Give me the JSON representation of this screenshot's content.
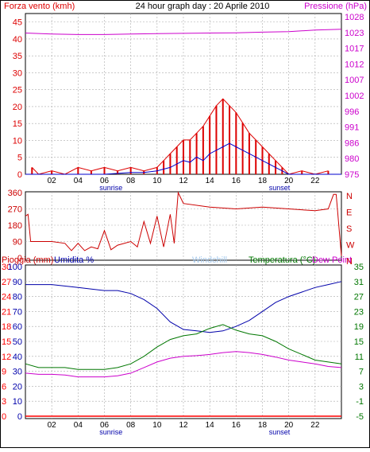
{
  "title": "24 hour graph day : 20 Aprile 2010",
  "colors": {
    "wind": "#dd0000",
    "gust": "#0000cc",
    "pressure": "#cc00cc",
    "direction": "#cc0000",
    "humidity": "#0000aa",
    "temperature": "#007700",
    "dewpoint": "#cc00cc",
    "rain": "#ff0000",
    "windchill": "#aaccee",
    "frame": "#000000",
    "grid": "#aaaaaa"
  },
  "time_axis": {
    "ticks": [
      "02",
      "04",
      "06",
      "08",
      "10",
      "12",
      "14",
      "16",
      "18",
      "20",
      "22"
    ],
    "sunrise_label": "sunrise",
    "sunset_label": "sunset",
    "range_hours": [
      0,
      24
    ]
  },
  "panel1": {
    "left_label": "Forza vento (kmh)",
    "right_label": "Pressione (hPa)",
    "left_ticks": [
      "0",
      "5",
      "10",
      "15",
      "20",
      "25",
      "30",
      "35",
      "40",
      "45"
    ],
    "right_ticks": [
      "975",
      "980",
      "986",
      "991",
      "996",
      "1002",
      "1007",
      "1012",
      "1017",
      "1023",
      "1028"
    ]
  },
  "panel2": {
    "left_ticks": [
      "0",
      "90",
      "180",
      "270",
      "360"
    ],
    "right_ticks": [
      "N",
      "E",
      "S",
      "W",
      "N"
    ]
  },
  "panel3": {
    "rain_label": "Pioggia (mm)",
    "humidity_label": "Umidita %",
    "windchill_label": "Windchill",
    "temp_label": "Temperatura (°C)",
    "dew_label": "Dew Point",
    "rain_ticks": [
      "0",
      "3",
      "6",
      "9",
      "12",
      "15",
      "18",
      "21",
      "24",
      "27",
      "30"
    ],
    "humidity_ticks": [
      "0",
      "10",
      "20",
      "30",
      "40",
      "50",
      "60",
      "70",
      "80",
      "90",
      "100"
    ],
    "temp_ticks": [
      "-5",
      "-1",
      "3",
      "7",
      "11",
      "15",
      "19",
      "23",
      "27",
      "31",
      "35"
    ]
  },
  "chart_data": [
    {
      "type": "line",
      "title": "24 hour graph day : 20 Aprile 2010",
      "x_unit": "hour",
      "xlim": [
        0,
        24
      ],
      "ylim_left": [
        0,
        45
      ],
      "ylim_right": [
        975,
        1028
      ],
      "series": [
        {
          "name": "Forza vento (kmh)",
          "axis": "left",
          "x": [
            0.5,
            1,
            2,
            3,
            4,
            5,
            6,
            7,
            8,
            9,
            10,
            10.5,
            11,
            11.5,
            12,
            12.5,
            13,
            13.5,
            14,
            14.5,
            15,
            15.5,
            16,
            16.5,
            17,
            17.5,
            18,
            18.5,
            19,
            19.5,
            20,
            21,
            22,
            23
          ],
          "y": [
            2,
            0,
            1,
            0,
            2,
            1,
            2,
            1,
            2,
            1,
            2,
            4,
            6,
            8,
            10,
            10,
            12,
            14,
            17,
            20,
            22,
            20,
            18,
            15,
            12,
            10,
            8,
            6,
            4,
            2,
            0,
            1,
            0,
            1
          ]
        },
        {
          "axis": "left",
          "x": [
            0,
            4,
            6,
            8,
            9,
            10,
            10.5,
            11,
            11.5,
            12,
            12.5,
            13,
            13.5,
            14,
            14.5,
            15,
            15.5,
            16,
            16.5,
            17,
            17.5,
            18,
            18.5,
            19,
            19.5,
            20,
            24
          ],
          "y": [
            0,
            0,
            0,
            0.5,
            0.5,
            1,
            1.5,
            2,
            3,
            4,
            3.5,
            5,
            4,
            6,
            7,
            8,
            9,
            8,
            7,
            6,
            5,
            4,
            3,
            2,
            1,
            0,
            0
          ]
        },
        {
          "name": "Pressione (hPa)",
          "axis": "right",
          "x": [
            0,
            2,
            4,
            6,
            8,
            10,
            12,
            14,
            16,
            18,
            20,
            22,
            24
          ],
          "y": [
            1022.5,
            1022.2,
            1022.0,
            1022.0,
            1022.2,
            1022.3,
            1022.4,
            1022.5,
            1022.6,
            1022.8,
            1023.0,
            1023.5,
            1023.8
          ]
        }
      ]
    },
    {
      "type": "line",
      "xlim": [
        0,
        24
      ],
      "ylim": [
        0,
        360
      ],
      "series": [
        {
          "x": [
            0,
            0.2,
            0.4,
            2,
            3,
            3.5,
            4,
            4.5,
            5,
            5.5,
            6,
            6.5,
            7,
            8,
            8.5,
            9,
            9.5,
            10,
            10.5,
            11,
            11.3,
            11.6,
            12,
            14,
            16,
            18,
            20,
            22,
            23,
            23.4,
            23.6,
            24
          ],
          "y": [
            230,
            240,
            90,
            90,
            80,
            40,
            80,
            40,
            60,
            50,
            150,
            45,
            70,
            90,
            60,
            200,
            80,
            230,
            60,
            240,
            80,
            360,
            300,
            280,
            270,
            280,
            270,
            260,
            270,
            350,
            350,
            10
          ]
        }
      ]
    },
    {
      "type": "line",
      "xlim": [
        0,
        24
      ],
      "ylim_rain": [
        0,
        30
      ],
      "ylim_humidity": [
        0,
        100
      ],
      "ylim_temp": [
        -5,
        35
      ],
      "series": [
        {
          "name": "Umidita %",
          "axis": "humidity",
          "x": [
            0,
            2,
            4,
            6,
            7,
            8,
            9,
            10,
            11,
            12,
            13,
            14,
            15,
            16,
            17,
            18,
            19,
            20,
            21,
            22,
            23,
            24
          ],
          "y": [
            88,
            88,
            86,
            84,
            84,
            82,
            78,
            72,
            63,
            58,
            57,
            56,
            57,
            60,
            64,
            70,
            76,
            80,
            83,
            86,
            88,
            90
          ]
        },
        {
          "name": "Temperatura (°C)",
          "axis": "temp",
          "x": [
            0,
            1,
            2,
            3,
            4,
            5,
            6,
            7,
            8,
            9,
            10,
            11,
            12,
            13,
            14,
            15,
            16,
            17,
            18,
            19,
            20,
            21,
            22,
            23,
            24
          ],
          "y": [
            9,
            8,
            8,
            8,
            7.5,
            7.5,
            7.5,
            8,
            9,
            11,
            13.5,
            15.5,
            16.5,
            17,
            18.5,
            19.5,
            18,
            17,
            16.5,
            15,
            13,
            11.5,
            10,
            9.5,
            9
          ]
        },
        {
          "name": "Dew Point",
          "axis": "temp",
          "x": [
            0,
            1,
            2,
            3,
            4,
            5,
            6,
            7,
            8,
            9,
            10,
            11,
            12,
            13,
            14,
            15,
            16,
            17,
            18,
            19,
            20,
            21,
            22,
            23,
            24
          ],
          "y": [
            6.5,
            6.2,
            6.2,
            6,
            5.5,
            5.5,
            5.5,
            5.8,
            6.5,
            8,
            9.5,
            10.5,
            11,
            11.2,
            11.5,
            12,
            12.3,
            12,
            11.5,
            10.8,
            10,
            9.5,
            9,
            8.3,
            8
          ]
        },
        {
          "name": "Pioggia (mm)",
          "axis": "rain",
          "x": [
            0,
            24
          ],
          "y": [
            0,
            0
          ]
        }
      ]
    }
  ]
}
